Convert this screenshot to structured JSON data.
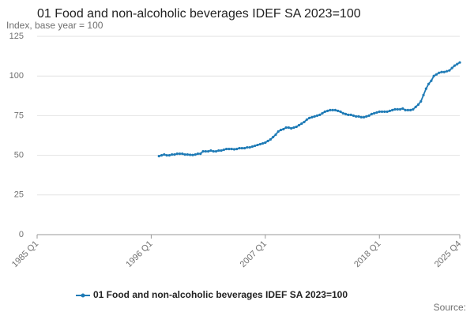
{
  "chart_data": {
    "type": "line",
    "title": "01 Food and non-alcoholic beverages IDEF SA 2023=100",
    "subtitle": "Index, base year = 100",
    "source": "Source:",
    "categories": [
      "1985 Q1",
      null,
      null,
      null,
      null,
      null,
      null,
      null,
      null,
      null,
      null,
      null,
      null,
      null,
      null,
      null,
      null,
      null,
      null,
      null,
      null,
      null,
      null,
      null,
      null,
      null,
      null,
      null,
      null,
      null,
      null,
      null,
      null,
      null,
      null,
      null,
      null,
      null,
      null,
      null,
      null,
      null,
      null,
      null,
      "1996 Q1",
      null,
      null,
      null,
      null,
      null,
      null,
      null,
      null,
      null,
      null,
      null,
      null,
      null,
      null,
      null,
      null,
      null,
      null,
      null,
      null,
      null,
      null,
      null,
      null,
      null,
      null,
      null,
      null,
      null,
      null,
      null,
      null,
      null,
      null,
      null,
      null,
      null,
      null,
      null,
      null,
      null,
      null,
      null,
      "2007 Q1",
      null,
      null,
      null,
      null,
      null,
      null,
      null,
      null,
      null,
      null,
      null,
      null,
      null,
      null,
      null,
      null,
      null,
      null,
      null,
      null,
      null,
      null,
      null,
      null,
      null,
      null,
      null,
      null,
      null,
      null,
      null,
      null,
      null,
      null,
      null,
      null,
      null,
      null,
      null,
      null,
      null,
      null,
      null,
      "2018 Q1",
      null,
      null,
      null,
      null,
      null,
      null,
      null,
      null,
      null,
      null,
      null,
      null,
      null,
      null,
      null,
      null,
      null,
      null,
      null,
      null,
      null,
      null,
      null,
      null,
      null,
      null,
      null,
      null,
      null,
      null,
      "2025 Q4"
    ],
    "series": [
      {
        "name": "01 Food and non-alcoholic beverages IDEF SA 2023=100",
        "color": "#1f7bb6",
        "values": [
          null,
          null,
          null,
          null,
          null,
          null,
          null,
          null,
          null,
          null,
          null,
          null,
          null,
          null,
          null,
          null,
          null,
          null,
          null,
          null,
          null,
          null,
          null,
          null,
          null,
          null,
          null,
          null,
          null,
          null,
          null,
          null,
          null,
          null,
          null,
          null,
          null,
          null,
          null,
          null,
          null,
          null,
          null,
          null,
          null,
          null,
          null,
          49.5,
          50,
          50.5,
          50,
          50,
          50.5,
          50.5,
          51,
          51,
          51,
          50.5,
          50.5,
          50.3,
          50.2,
          50.5,
          51,
          51,
          52.5,
          52.5,
          52.5,
          53,
          52.5,
          52.5,
          53,
          53,
          53.5,
          54,
          54,
          54,
          53.8,
          54,
          54.5,
          54.5,
          54.5,
          55,
          55,
          55.5,
          56,
          56.5,
          57,
          57.5,
          58,
          59,
          60,
          61.5,
          63,
          65,
          66,
          66.5,
          67.5,
          67.5,
          67,
          67.5,
          68,
          69,
          70,
          71,
          72.5,
          73.5,
          74,
          74.5,
          75,
          75.5,
          76.5,
          77.5,
          78,
          78.5,
          78.5,
          78.5,
          78,
          77.5,
          76.5,
          76,
          75.5,
          75.5,
          75,
          74.5,
          74.5,
          74,
          74,
          74.5,
          75,
          76,
          76.5,
          77,
          77.5,
          77.5,
          77.5,
          77.5,
          78,
          78.5,
          79,
          79,
          79,
          79.5,
          78.5,
          78.5,
          78.5,
          79,
          80.5,
          82,
          84,
          88,
          92,
          95,
          97,
          100,
          101,
          102,
          102.5,
          102.5,
          103,
          103.5,
          105,
          106.5,
          107.5,
          108.5
        ]
      }
    ],
    "ylim": [
      0,
      125
    ],
    "yticks": [
      0,
      25,
      50,
      75,
      100,
      125
    ],
    "grid": true,
    "legend": "bottom"
  }
}
